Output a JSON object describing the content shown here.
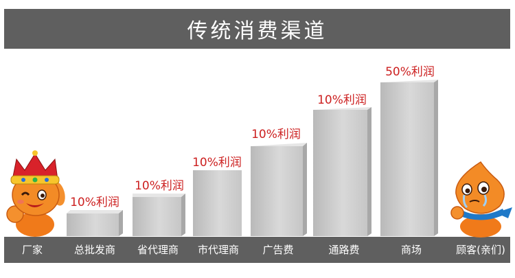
{
  "title": "传统消费渠道",
  "labels": [
    "厂家",
    "总批发商",
    "省代理商",
    "市代理商",
    "广告费",
    "通路费",
    "商场",
    "顾客(亲们)"
  ],
  "profits": [
    "10%利润",
    "10%利润",
    "10%利润",
    "10%利润",
    "10%利润",
    "50%利润"
  ],
  "colors": {
    "bar_dark": "#5f5f5f",
    "profit_text": "#cc1f1f"
  }
}
